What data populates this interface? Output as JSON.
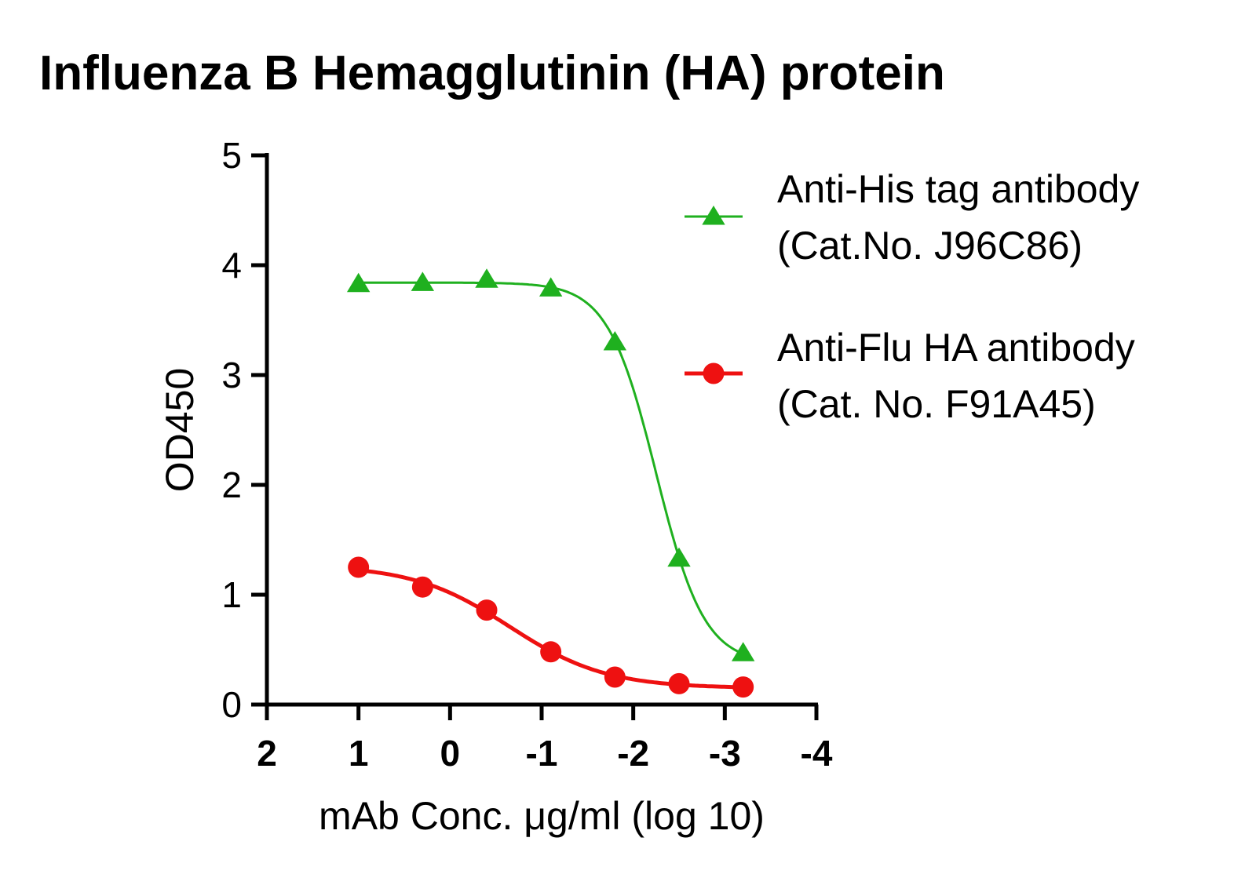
{
  "chart_data": {
    "type": "line",
    "title": "Influenza B Hemagglutinin (HA) protein",
    "xlabel": "mAb Conc. μg/ml (log 10)",
    "ylabel": "OD450",
    "xlim": [
      2,
      -4
    ],
    "ylim": [
      0,
      5
    ],
    "x_ticks": [
      2,
      1,
      0,
      -1,
      -2,
      -3,
      -4
    ],
    "y_ticks": [
      0,
      1,
      2,
      3,
      4,
      5
    ],
    "legend_position": "top-right",
    "grid": false,
    "series": [
      {
        "name_line1": "Anti-His tag antibody",
        "name_line2": "(Cat.No. J96C86)",
        "color": "#1fb01f",
        "marker": "triangle",
        "x": [
          1.0,
          0.3,
          -0.4,
          -1.1,
          -1.8,
          -2.5,
          -3.2
        ],
        "y": [
          3.83,
          3.84,
          3.87,
          3.79,
          3.3,
          1.33,
          0.47
        ]
      },
      {
        "name_line1": "Anti-Flu HA antibody",
        "name_line2": "(Cat. No. F91A45)",
        "color": "#ee1111",
        "marker": "circle",
        "x": [
          1.0,
          0.3,
          -0.4,
          -1.1,
          -1.8,
          -2.5,
          -3.2
        ],
        "y": [
          1.25,
          1.07,
          0.86,
          0.48,
          0.25,
          0.19,
          0.16
        ]
      }
    ]
  }
}
